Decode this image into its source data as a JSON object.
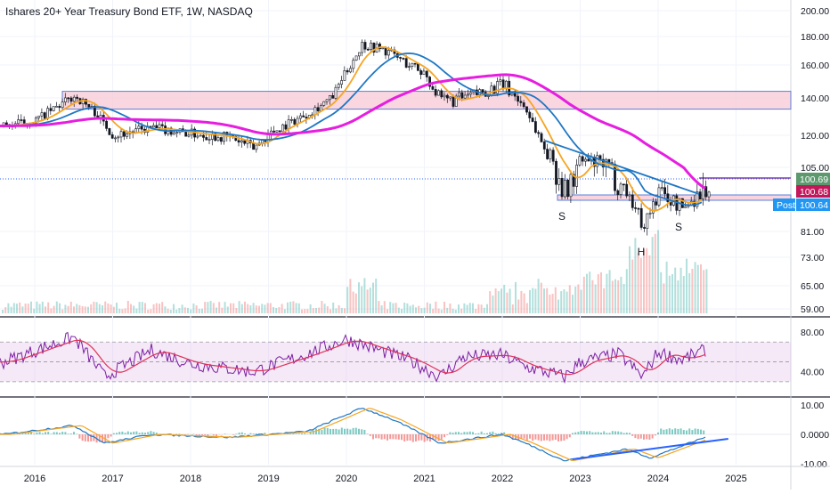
{
  "header": {
    "title": "Ishares 20+ Year Treasury Bond ETF, 1W, NASDAQ"
  },
  "colors": {
    "up": "#26a69a",
    "down": "#ef5350",
    "ma_short": "#f5a623",
    "ma_mid": "#1f77c4",
    "ma_long": "#e61ee0",
    "rsi": "#7b1fa2",
    "rsi_ma": "#e0325a",
    "zone": "#f8c9d6",
    "zone_border": "#5b7fd6",
    "trendline": "#2962ff",
    "macd": "#1f77c4",
    "signal": "#f5a623"
  },
  "chart_data": [
    {
      "type": "line",
      "panel": "price",
      "x": [
        2015.6,
        2016.0,
        2016.5,
        2016.75,
        2017.0,
        2017.5,
        2018.0,
        2018.5,
        2018.8,
        2019.0,
        2019.5,
        2019.8,
        2020.2,
        2020.5,
        2020.8,
        2021.0,
        2021.2,
        2021.5,
        2022.0,
        2022.3,
        2022.5,
        2022.8,
        2023.0,
        2023.3,
        2023.6,
        2023.8,
        2024.0,
        2024.3,
        2024.5,
        2024.7
      ],
      "series": [
        {
          "name": "",
          "values": [
            125,
            128,
            141,
            133,
            120,
            124,
            121,
            119,
            114,
            121,
            132,
            140,
            175,
            170,
            160,
            155,
            138,
            140,
            148,
            134,
            116,
            98,
            108,
            106,
            99,
            84,
            99,
            92,
            98,
            101
          ]
        }
      ],
      "y_ticks": [
        "200.00",
        "180.00",
        "160.00",
        "140.00",
        "120.00",
        "105.00",
        "81.00",
        "73.00",
        "65.00",
        "59.00"
      ],
      "x_ticks": [
        "2016",
        "2017",
        "2018",
        "2019",
        "2020",
        "2021",
        "2022",
        "2023",
        "2024",
        "2025"
      ],
      "price_labels": [
        {
          "text": "100.69",
          "color": "#5c9a6e"
        },
        {
          "text": "100.68",
          "color": "#c2185b"
        },
        {
          "text": "100.64",
          "color": "#2196f3",
          "tag": "Post"
        }
      ],
      "annotations": [
        "S",
        "H",
        "S"
      ],
      "zones": [
        {
          "low": 134,
          "high": 144
        },
        {
          "low": 97,
          "high": 99
        }
      ]
    },
    {
      "type": "line",
      "panel": "rsi",
      "x": [
        2015.6,
        2016.5,
        2016.9,
        2017.5,
        2018.0,
        2018.8,
        2019.5,
        2020.0,
        2020.3,
        2020.8,
        2021.2,
        2021.5,
        2022.0,
        2022.3,
        2022.8,
        2023.0,
        2023.5,
        2023.8,
        2024.0,
        2024.3,
        2024.7
      ],
      "series": [
        {
          "name": "",
          "values": [
            50,
            75,
            35,
            62,
            48,
            40,
            58,
            73,
            65,
            52,
            35,
            55,
            57,
            45,
            35,
            50,
            58,
            35,
            60,
            52,
            65
          ]
        }
      ],
      "y_ticks": [
        "80.00",
        "40.00"
      ],
      "band": [
        30,
        70
      ]
    },
    {
      "type": "line",
      "panel": "macd",
      "x": [
        2015.6,
        2016.5,
        2016.9,
        2017.5,
        2018.5,
        2019.5,
        2020.2,
        2020.6,
        2021.2,
        2022.0,
        2022.3,
        2022.8,
        2023.2,
        2023.6,
        2023.9,
        2024.3,
        2024.7
      ],
      "series": [
        {
          "name": "",
          "values": [
            0,
            3,
            -3,
            0,
            -1,
            1,
            9,
            5,
            -3,
            0,
            -3,
            -9,
            -7,
            -5,
            -8,
            -4,
            0
          ]
        }
      ],
      "y_ticks": [
        "10.00",
        "0.0000",
        "-10.00"
      ],
      "trendline": [
        {
          "x": 2022.9,
          "y": -8.5
        },
        {
          "x": 2024.9,
          "y": -1.5
        }
      ]
    }
  ]
}
